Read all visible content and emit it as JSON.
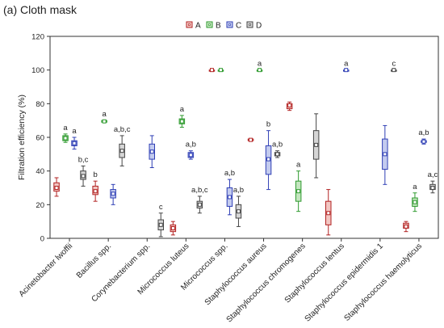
{
  "chart_data": {
    "type": "box",
    "title": "(a) Cloth mask",
    "xlabel": "",
    "ylabel": "Filtration efficiency (%)",
    "ylim": [
      0,
      120
    ],
    "yticks": [
      0,
      20,
      40,
      60,
      80,
      100,
      120
    ],
    "grid": false,
    "legend_position": "top-center",
    "categories": [
      "Acinetobacter lwoffii",
      "Bacillus spp.",
      "Corynebacterium spp.",
      "Micrococcus luteus",
      "Micrococcus spp.",
      "Staphylococcus aureus",
      "Staphylococcus chromogenes",
      "Staphylococcus lentus",
      "Staphylococcus epidermidis 1",
      "Staphylococcus haemolyticus"
    ],
    "series": [
      {
        "name": "A",
        "color": "#b22222",
        "fill": "#f2c6c2"
      },
      {
        "name": "B",
        "color": "#2e9a2e",
        "fill": "#c4e6bf"
      },
      {
        "name": "C",
        "color": "#2f3fb5",
        "fill": "#c3cbef"
      },
      {
        "name": "D",
        "color": "#444444",
        "fill": "#d6d6d6"
      }
    ],
    "boxes": [
      {
        "category": 0,
        "series": 0,
        "median": 30,
        "q1": 28,
        "q3": 33,
        "min": 25,
        "max": 36,
        "label": ""
      },
      {
        "category": 0,
        "series": 1,
        "median": 59.5,
        "q1": 58,
        "q3": 61,
        "min": 57,
        "max": 62,
        "label": "a"
      },
      {
        "category": 0,
        "series": 2,
        "median": 56.5,
        "q1": 55,
        "q3": 58,
        "min": 53,
        "max": 60,
        "label": "a"
      },
      {
        "category": 0,
        "series": 3,
        "median": 37,
        "q1": 35,
        "q3": 40,
        "min": 31,
        "max": 43,
        "label": "b,c"
      },
      {
        "category": 1,
        "series": 0,
        "median": 28,
        "q1": 26,
        "q3": 31,
        "min": 22,
        "max": 34,
        "label": "b"
      },
      {
        "category": 1,
        "series": 1,
        "median": 69.5,
        "q1": 69,
        "q3": 70,
        "min": 69,
        "max": 70,
        "label": "a"
      },
      {
        "category": 1,
        "series": 2,
        "median": 26.5,
        "q1": 24,
        "q3": 29,
        "min": 20,
        "max": 32,
        "label": ""
      },
      {
        "category": 1,
        "series": 3,
        "median": 52,
        "q1": 48,
        "q3": 56,
        "min": 43,
        "max": 61,
        "label": "a,b,c"
      },
      {
        "category": 2,
        "series": 2,
        "median": 51.5,
        "q1": 47,
        "q3": 56,
        "min": 42,
        "max": 61,
        "label": ""
      },
      {
        "category": 2,
        "series": 3,
        "median": 8,
        "q1": 5,
        "q3": 11,
        "min": 1,
        "max": 15,
        "label": "c"
      },
      {
        "category": 3,
        "series": 0,
        "median": 6,
        "q1": 4,
        "q3": 8,
        "min": 2,
        "max": 10,
        "label": ""
      },
      {
        "category": 3,
        "series": 1,
        "median": 69.5,
        "q1": 68,
        "q3": 71,
        "min": 66,
        "max": 73,
        "label": "a"
      },
      {
        "category": 3,
        "series": 2,
        "median": 49.5,
        "q1": 48,
        "q3": 51,
        "min": 47,
        "max": 52,
        "label": "a,b"
      },
      {
        "category": 3,
        "series": 3,
        "median": 20,
        "q1": 18,
        "q3": 22,
        "min": 15,
        "max": 25,
        "label": "a,b,c"
      },
      {
        "category": 4,
        "series": 0,
        "median": 100,
        "q1": 100,
        "q3": 100,
        "min": 100,
        "max": 100,
        "label": ""
      },
      {
        "category": 4,
        "series": 1,
        "median": 100,
        "q1": 100,
        "q3": 100,
        "min": 100,
        "max": 100,
        "label": ""
      },
      {
        "category": 4,
        "series": 2,
        "median": 24.5,
        "q1": 19,
        "q3": 30,
        "min": 14,
        "max": 35,
        "label": "a,b"
      },
      {
        "category": 4,
        "series": 3,
        "median": 16,
        "q1": 12,
        "q3": 20,
        "min": 7,
        "max": 25,
        "label": "a,b"
      },
      {
        "category": 5,
        "series": 0,
        "median": 58.5,
        "q1": 58,
        "q3": 59,
        "min": 58,
        "max": 59,
        "label": ""
      },
      {
        "category": 5,
        "series": 1,
        "median": 100,
        "q1": 100,
        "q3": 100,
        "min": 100,
        "max": 100,
        "label": "a"
      },
      {
        "category": 5,
        "series": 2,
        "median": 47,
        "q1": 38,
        "q3": 55,
        "min": 29,
        "max": 64,
        "label": "b"
      },
      {
        "category": 5,
        "series": 3,
        "median": 50,
        "q1": 49,
        "q3": 51,
        "min": 48,
        "max": 52,
        "label": "a,b"
      },
      {
        "category": 6,
        "series": 0,
        "median": 79,
        "q1": 77,
        "q3": 80,
        "min": 76,
        "max": 81,
        "label": ""
      },
      {
        "category": 6,
        "series": 1,
        "median": 28,
        "q1": 22,
        "q3": 34,
        "min": 16,
        "max": 40,
        "label": "a"
      },
      {
        "category": 6,
        "series": 3,
        "median": 55.5,
        "q1": 47,
        "q3": 64,
        "min": 36,
        "max": 74,
        "label": ""
      },
      {
        "category": 7,
        "series": 0,
        "median": 15,
        "q1": 8,
        "q3": 22,
        "min": 2,
        "max": 29,
        "label": ""
      },
      {
        "category": 7,
        "series": 2,
        "median": 100,
        "q1": 100,
        "q3": 100,
        "min": 100,
        "max": 100,
        "label": "a"
      },
      {
        "category": 8,
        "series": 2,
        "median": 50,
        "q1": 41,
        "q3": 59,
        "min": 32,
        "max": 67,
        "label": ""
      },
      {
        "category": 8,
        "series": 3,
        "median": 100,
        "q1": 100,
        "q3": 100,
        "min": 100,
        "max": 100,
        "label": "c"
      },
      {
        "category": 9,
        "series": 0,
        "median": 7,
        "q1": 6,
        "q3": 9,
        "min": 4,
        "max": 10,
        "label": ""
      },
      {
        "category": 9,
        "series": 1,
        "median": 21.5,
        "q1": 19,
        "q3": 24,
        "min": 16,
        "max": 27,
        "label": "a"
      },
      {
        "category": 9,
        "series": 2,
        "median": 57.5,
        "q1": 57,
        "q3": 58,
        "min": 56,
        "max": 59,
        "label": "a,b"
      },
      {
        "category": 9,
        "series": 3,
        "median": 30,
        "q1": 29,
        "q3": 32,
        "min": 27,
        "max": 34,
        "label": "a,c"
      }
    ]
  }
}
